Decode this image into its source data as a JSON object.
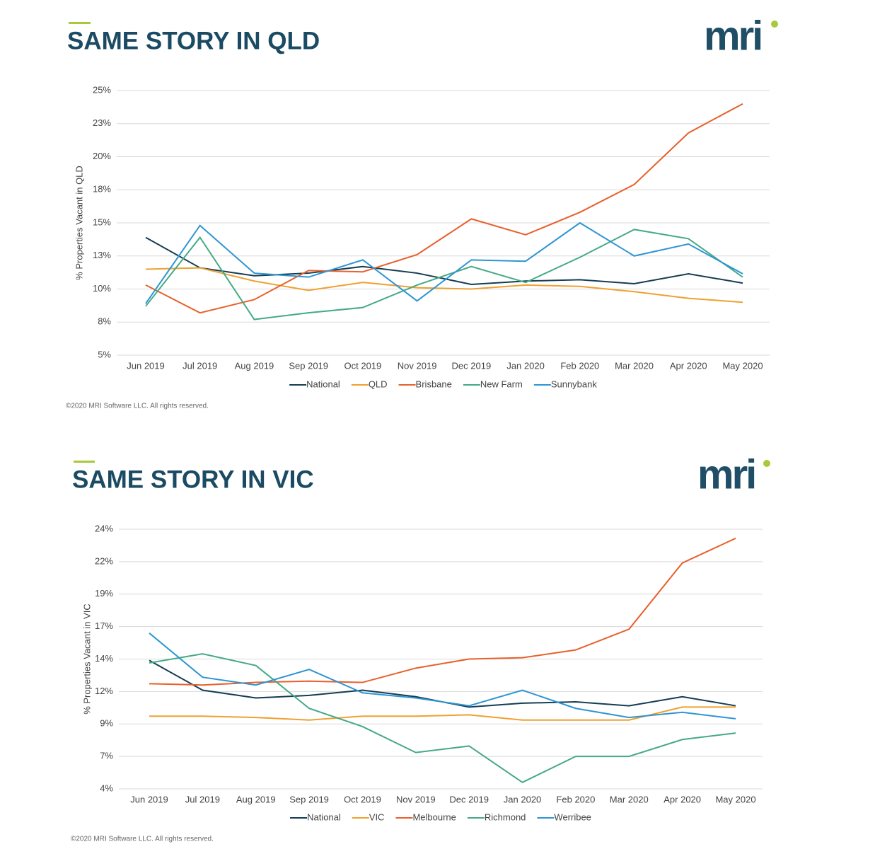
{
  "chart_data": [
    {
      "type": "line",
      "title": "SAME STORY IN QLD",
      "logo": "mri",
      "y_label": "% Properties Vacant in QLD",
      "footnote": "©2020 MRI Software LLC. All rights reserved.",
      "categories": [
        "Jun 2019",
        "Jul 2019",
        "Aug 2019",
        "Sep 2019",
        "Oct 2019",
        "Nov 2019",
        "Dec 2019",
        "Jan 2020",
        "Feb 2020",
        "Mar 2020",
        "Apr 2020",
        "May 2020"
      ],
      "ylim": [
        5,
        25
      ],
      "yticks": [
        {
          "value": 5,
          "label": "5%"
        },
        {
          "value": 7.5,
          "label": "8%"
        },
        {
          "value": 10,
          "label": "10%"
        },
        {
          "value": 12.5,
          "label": "13%"
        },
        {
          "value": 15,
          "label": "15%"
        },
        {
          "value": 17.5,
          "label": "18%"
        },
        {
          "value": 20,
          "label": "20%"
        },
        {
          "value": 22.5,
          "label": "23%"
        },
        {
          "value": 25,
          "label": "25%"
        }
      ],
      "grid": true,
      "legend": "bottom",
      "series": [
        {
          "name": "National",
          "color": "#143d52",
          "values": [
            13.9,
            11.6,
            11.0,
            11.2,
            11.7,
            11.2,
            10.35,
            10.6,
            10.7,
            10.4,
            11.15,
            10.45
          ]
        },
        {
          "name": "QLD",
          "color": "#f0a030",
          "values": [
            11.5,
            11.6,
            10.6,
            9.9,
            10.5,
            10.1,
            10.0,
            10.3,
            10.2,
            9.8,
            9.3,
            9.0
          ]
        },
        {
          "name": "Brisbane",
          "color": "#e8602c",
          "values": [
            10.3,
            8.2,
            9.2,
            11.4,
            11.3,
            12.6,
            15.3,
            14.1,
            15.8,
            17.9,
            21.8,
            24.0
          ]
        },
        {
          "name": "New Farm",
          "color": "#45aa84",
          "values": [
            8.7,
            13.9,
            7.7,
            8.2,
            8.6,
            10.3,
            11.7,
            10.5,
            12.4,
            14.5,
            13.8,
            10.9
          ]
        },
        {
          "name": "Sunnybank",
          "color": "#2e95d3",
          "values": [
            8.9,
            14.8,
            11.2,
            10.9,
            12.2,
            9.1,
            12.2,
            12.1,
            15.0,
            12.5,
            13.4,
            11.15
          ]
        }
      ]
    },
    {
      "type": "line",
      "title": "SAME STORY IN VIC",
      "logo": "mri",
      "y_label": "% Properties Vacant in VIC",
      "footnote": "©2020 MRI Software LLC. All rights reserved.",
      "categories": [
        "Jun 2019",
        "Jul 2019",
        "Aug 2019",
        "Sep 2019",
        "Oct 2019",
        "Nov 2019",
        "Dec 2019",
        "Jan 2020",
        "Feb 2020",
        "Mar 2020",
        "Apr 2020",
        "May 2020"
      ],
      "ylim": [
        4,
        24
      ],
      "yticks": [
        {
          "value": 4,
          "label": "4%"
        },
        {
          "value": 6.5,
          "label": "7%"
        },
        {
          "value": 9,
          "label": "9%"
        },
        {
          "value": 11.5,
          "label": "12%"
        },
        {
          "value": 14,
          "label": "14%"
        },
        {
          "value": 16.5,
          "label": "17%"
        },
        {
          "value": 19,
          "label": "19%"
        },
        {
          "value": 21.5,
          "label": "22%"
        },
        {
          "value": 24,
          "label": "24%"
        }
      ],
      "grid": true,
      "legend": "bottom",
      "series": [
        {
          "name": "National",
          "color": "#143d52",
          "values": [
            13.9,
            11.6,
            11.0,
            11.2,
            11.6,
            11.1,
            10.3,
            10.6,
            10.7,
            10.4,
            11.1,
            10.4
          ]
        },
        {
          "name": "VIC",
          "color": "#f0a030",
          "values": [
            9.6,
            9.6,
            9.5,
            9.3,
            9.6,
            9.6,
            9.7,
            9.3,
            9.3,
            9.3,
            10.3,
            10.3
          ]
        },
        {
          "name": "Melbourne",
          "color": "#e8602c",
          "values": [
            12.1,
            12.0,
            12.2,
            12.3,
            12.2,
            13.3,
            14.0,
            14.1,
            14.7,
            16.3,
            21.4,
            23.3
          ]
        },
        {
          "name": "Richmond",
          "color": "#45aa84",
          "values": [
            13.7,
            14.4,
            13.5,
            10.2,
            8.8,
            6.8,
            7.3,
            4.5,
            6.5,
            6.5,
            7.8,
            8.3
          ]
        },
        {
          "name": "Werribee",
          "color": "#2e95d3",
          "values": [
            16.0,
            12.6,
            12.0,
            13.2,
            11.4,
            11.0,
            10.4,
            11.6,
            10.2,
            9.5,
            9.9,
            9.4
          ]
        }
      ]
    }
  ]
}
